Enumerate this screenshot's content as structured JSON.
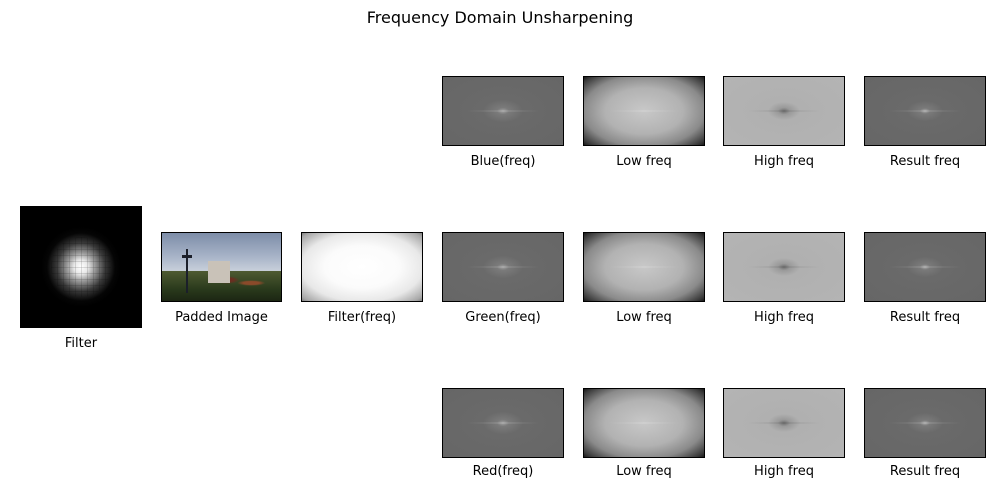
{
  "title": "Frequency Domain Unsharpening",
  "panels": {
    "filter": "Filter",
    "padded_image": "Padded Image",
    "filter_freq": "Filter(freq)",
    "rows": [
      {
        "channel": "Blue(freq)",
        "low": "Low freq",
        "high": "High freq",
        "result": "Result freq"
      },
      {
        "channel": "Green(freq)",
        "low": "Low freq",
        "high": "High freq",
        "result": "Result freq"
      },
      {
        "channel": "Red(freq)",
        "low": "Low freq",
        "high": "High freq",
        "result": "Result freq"
      }
    ]
  }
}
